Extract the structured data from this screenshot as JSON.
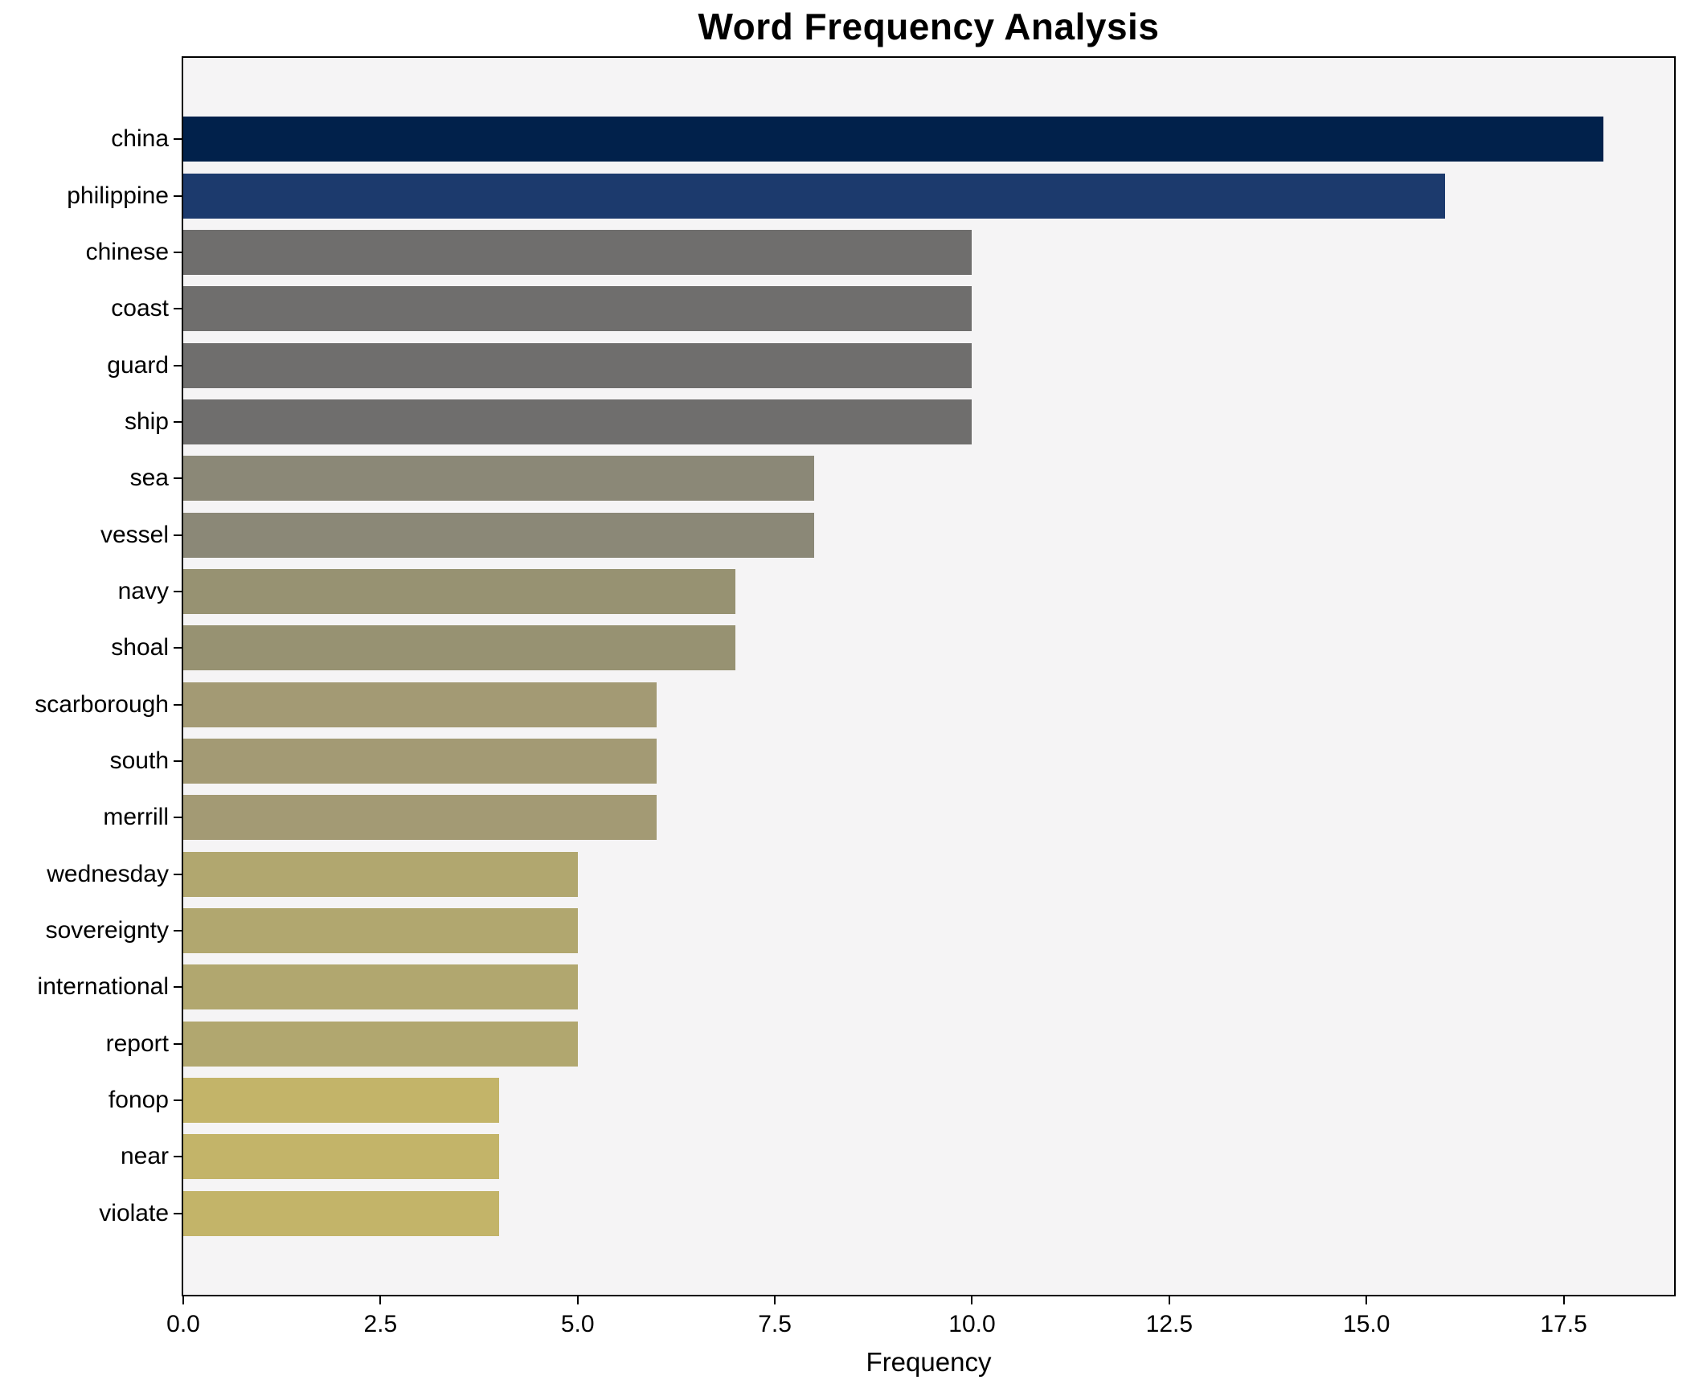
{
  "figure": {
    "background_color": "#ffffff",
    "plot_background_color": "#f5f4f5",
    "spine_color": "#000000"
  },
  "chart_data": {
    "type": "bar",
    "orientation": "horizontal",
    "title": "Word Frequency Analysis",
    "xlabel": "Frequency",
    "ylabel": "",
    "grid": false,
    "legend": false,
    "xlim": [
      0,
      18.9
    ],
    "categories": [
      "china",
      "philippine",
      "chinese",
      "coast",
      "guard",
      "ship",
      "sea",
      "vessel",
      "navy",
      "shoal",
      "scarborough",
      "south",
      "merrill",
      "wednesday",
      "sovereignty",
      "international",
      "report",
      "fonop",
      "near",
      "violate"
    ],
    "values": [
      18,
      16,
      10,
      10,
      10,
      10,
      8,
      8,
      7,
      7,
      6,
      6,
      6,
      5,
      5,
      5,
      5,
      4,
      4,
      4
    ],
    "bar_colors": [
      "#01214b",
      "#1c3a6d",
      "#6f6e6d",
      "#6f6e6d",
      "#6f6e6d",
      "#6f6e6d",
      "#8b8877",
      "#8b8877",
      "#979272",
      "#979272",
      "#a39a74",
      "#a39a74",
      "#a39a74",
      "#b1a76f",
      "#b1a76f",
      "#b1a76f",
      "#b1a76f",
      "#c3b469",
      "#c3b469",
      "#c3b469"
    ],
    "xticks": [
      {
        "value": 0,
        "label": "0.0"
      },
      {
        "value": 2.5,
        "label": "2.5"
      },
      {
        "value": 5,
        "label": "5.0"
      },
      {
        "value": 7.5,
        "label": "7.5"
      },
      {
        "value": 10,
        "label": "10.0"
      },
      {
        "value": 12.5,
        "label": "12.5"
      },
      {
        "value": 15,
        "label": "15.0"
      },
      {
        "value": 17.5,
        "label": "17.5"
      }
    ]
  }
}
